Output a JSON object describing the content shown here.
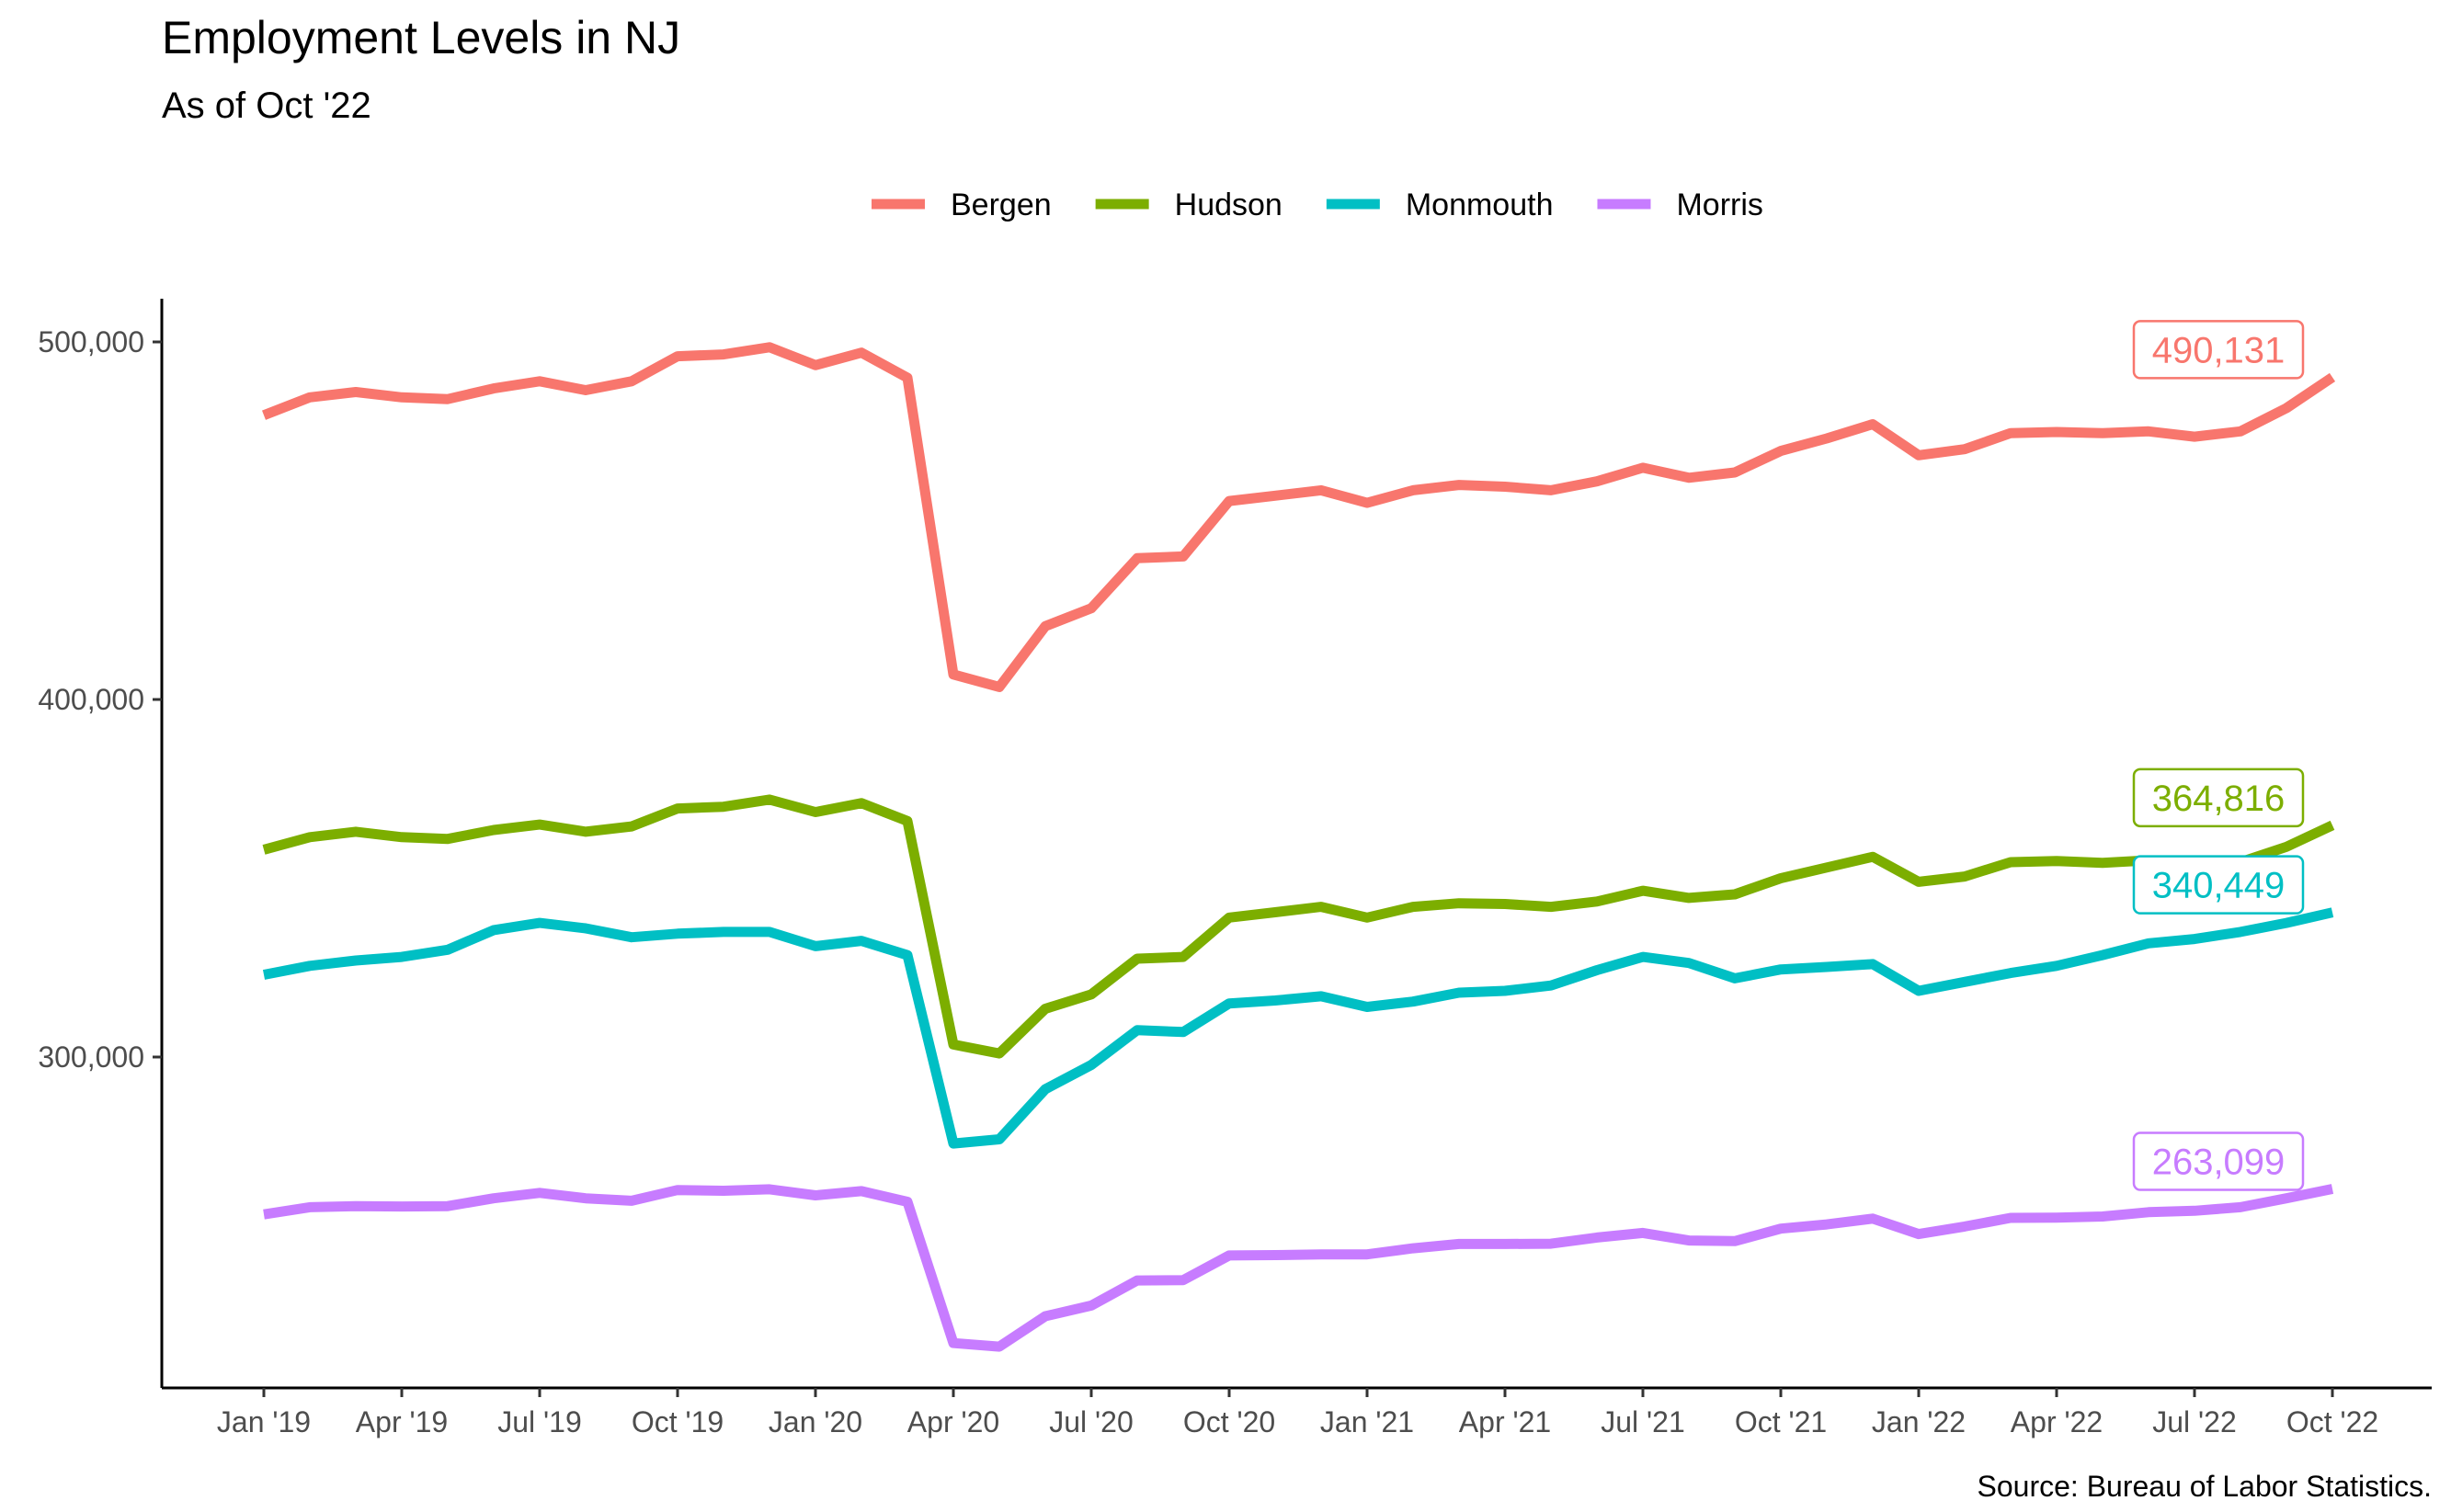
{
  "chart_data": {
    "type": "line",
    "title": "Employment Levels in NJ",
    "subtitle": "As of Oct '22",
    "caption": "Source: Bureau of Labor Statistics.",
    "xlabel": "",
    "ylabel": "",
    "ylim": [
      205000,
      513000
    ],
    "yticks": [
      300000,
      400000,
      500000
    ],
    "ytick_labels": [
      "300,000",
      "400,000",
      "500,000"
    ],
    "x": [
      "2019-01",
      "2019-02",
      "2019-03",
      "2019-04",
      "2019-05",
      "2019-06",
      "2019-07",
      "2019-08",
      "2019-09",
      "2019-10",
      "2019-11",
      "2019-12",
      "2020-01",
      "2020-02",
      "2020-03",
      "2020-04",
      "2020-05",
      "2020-06",
      "2020-07",
      "2020-08",
      "2020-09",
      "2020-10",
      "2020-11",
      "2020-12",
      "2021-01",
      "2021-02",
      "2021-03",
      "2021-04",
      "2021-05",
      "2021-06",
      "2021-07",
      "2021-08",
      "2021-09",
      "2021-10",
      "2021-11",
      "2021-12",
      "2022-01",
      "2022-02",
      "2022-03",
      "2022-04",
      "2022-05",
      "2022-06",
      "2022-07",
      "2022-08",
      "2022-09",
      "2022-10"
    ],
    "xticks": [
      "2019-01",
      "2019-04",
      "2019-07",
      "2019-10",
      "2020-01",
      "2020-04",
      "2020-07",
      "2020-10",
      "2021-01",
      "2021-04",
      "2021-07",
      "2021-10",
      "2022-01",
      "2022-04",
      "2022-07",
      "2022-10"
    ],
    "xtick_labels": [
      "Jan '19",
      "Apr '19",
      "Jul '19",
      "Oct '19",
      "Jan '20",
      "Apr '20",
      "Jul '20",
      "Oct '20",
      "Jan '21",
      "Apr '21",
      "Jul '21",
      "Oct '21",
      "Jan '22",
      "Apr '22",
      "Jul '22",
      "Oct '22"
    ],
    "legend_position": "top",
    "grid": false,
    "series": [
      {
        "name": "Bergen",
        "color": "#F8766D",
        "end_label": "490,131",
        "values": [
          479500,
          484500,
          486000,
          484500,
          484000,
          487000,
          489000,
          486500,
          489000,
          496000,
          496500,
          498500,
          493500,
          497000,
          490000,
          407000,
          403500,
          420500,
          425500,
          439500,
          440000,
          455500,
          457000,
          458500,
          455000,
          458500,
          460000,
          459500,
          458500,
          461000,
          464800,
          462000,
          463500,
          469500,
          473000,
          477000,
          468300,
          470000,
          474500,
          474800,
          474500,
          475000,
          473500,
          475000,
          481500,
          490131
        ]
      },
      {
        "name": "Hudson",
        "color": "#7CAE00",
        "end_label": "364,816",
        "values": [
          358000,
          361500,
          363000,
          361500,
          361000,
          363500,
          365000,
          363000,
          364500,
          369500,
          370000,
          372000,
          368500,
          371000,
          366000,
          303500,
          301000,
          313500,
          317500,
          327500,
          328000,
          339000,
          340500,
          342000,
          339000,
          342000,
          343000,
          342800,
          342000,
          343500,
          346500,
          344500,
          345500,
          350000,
          353000,
          356000,
          349000,
          350500,
          354500,
          354800,
          354300,
          355000,
          353800,
          354500,
          358800,
          364816
        ]
      },
      {
        "name": "Monmouth",
        "color": "#00BFC4",
        "end_label": "340,449",
        "values": [
          323000,
          325500,
          327000,
          328000,
          330000,
          335500,
          337500,
          336000,
          333500,
          334500,
          335000,
          335000,
          331000,
          332500,
          328500,
          275800,
          277000,
          291000,
          297800,
          307500,
          307000,
          315000,
          315800,
          317000,
          314000,
          315500,
          318000,
          318500,
          320000,
          324300,
          328000,
          326300,
          322000,
          324500,
          325200,
          326000,
          318500,
          321000,
          323500,
          325500,
          328500,
          331800,
          333000,
          335000,
          337500,
          340449
        ]
      },
      {
        "name": "Morris",
        "color": "#C77CFF",
        "end_label": "263,099",
        "values": [
          256000,
          258000,
          258300,
          258200,
          258300,
          260500,
          262000,
          260500,
          259800,
          262800,
          262600,
          263000,
          261300,
          262500,
          259500,
          220000,
          219000,
          227500,
          230500,
          237500,
          237600,
          244500,
          244600,
          244800,
          244800,
          246500,
          247700,
          247700,
          247800,
          249500,
          250800,
          248700,
          248500,
          252000,
          253200,
          254800,
          250500,
          252600,
          255000,
          255100,
          255400,
          256600,
          257000,
          258000,
          260500,
          263099
        ]
      }
    ]
  }
}
